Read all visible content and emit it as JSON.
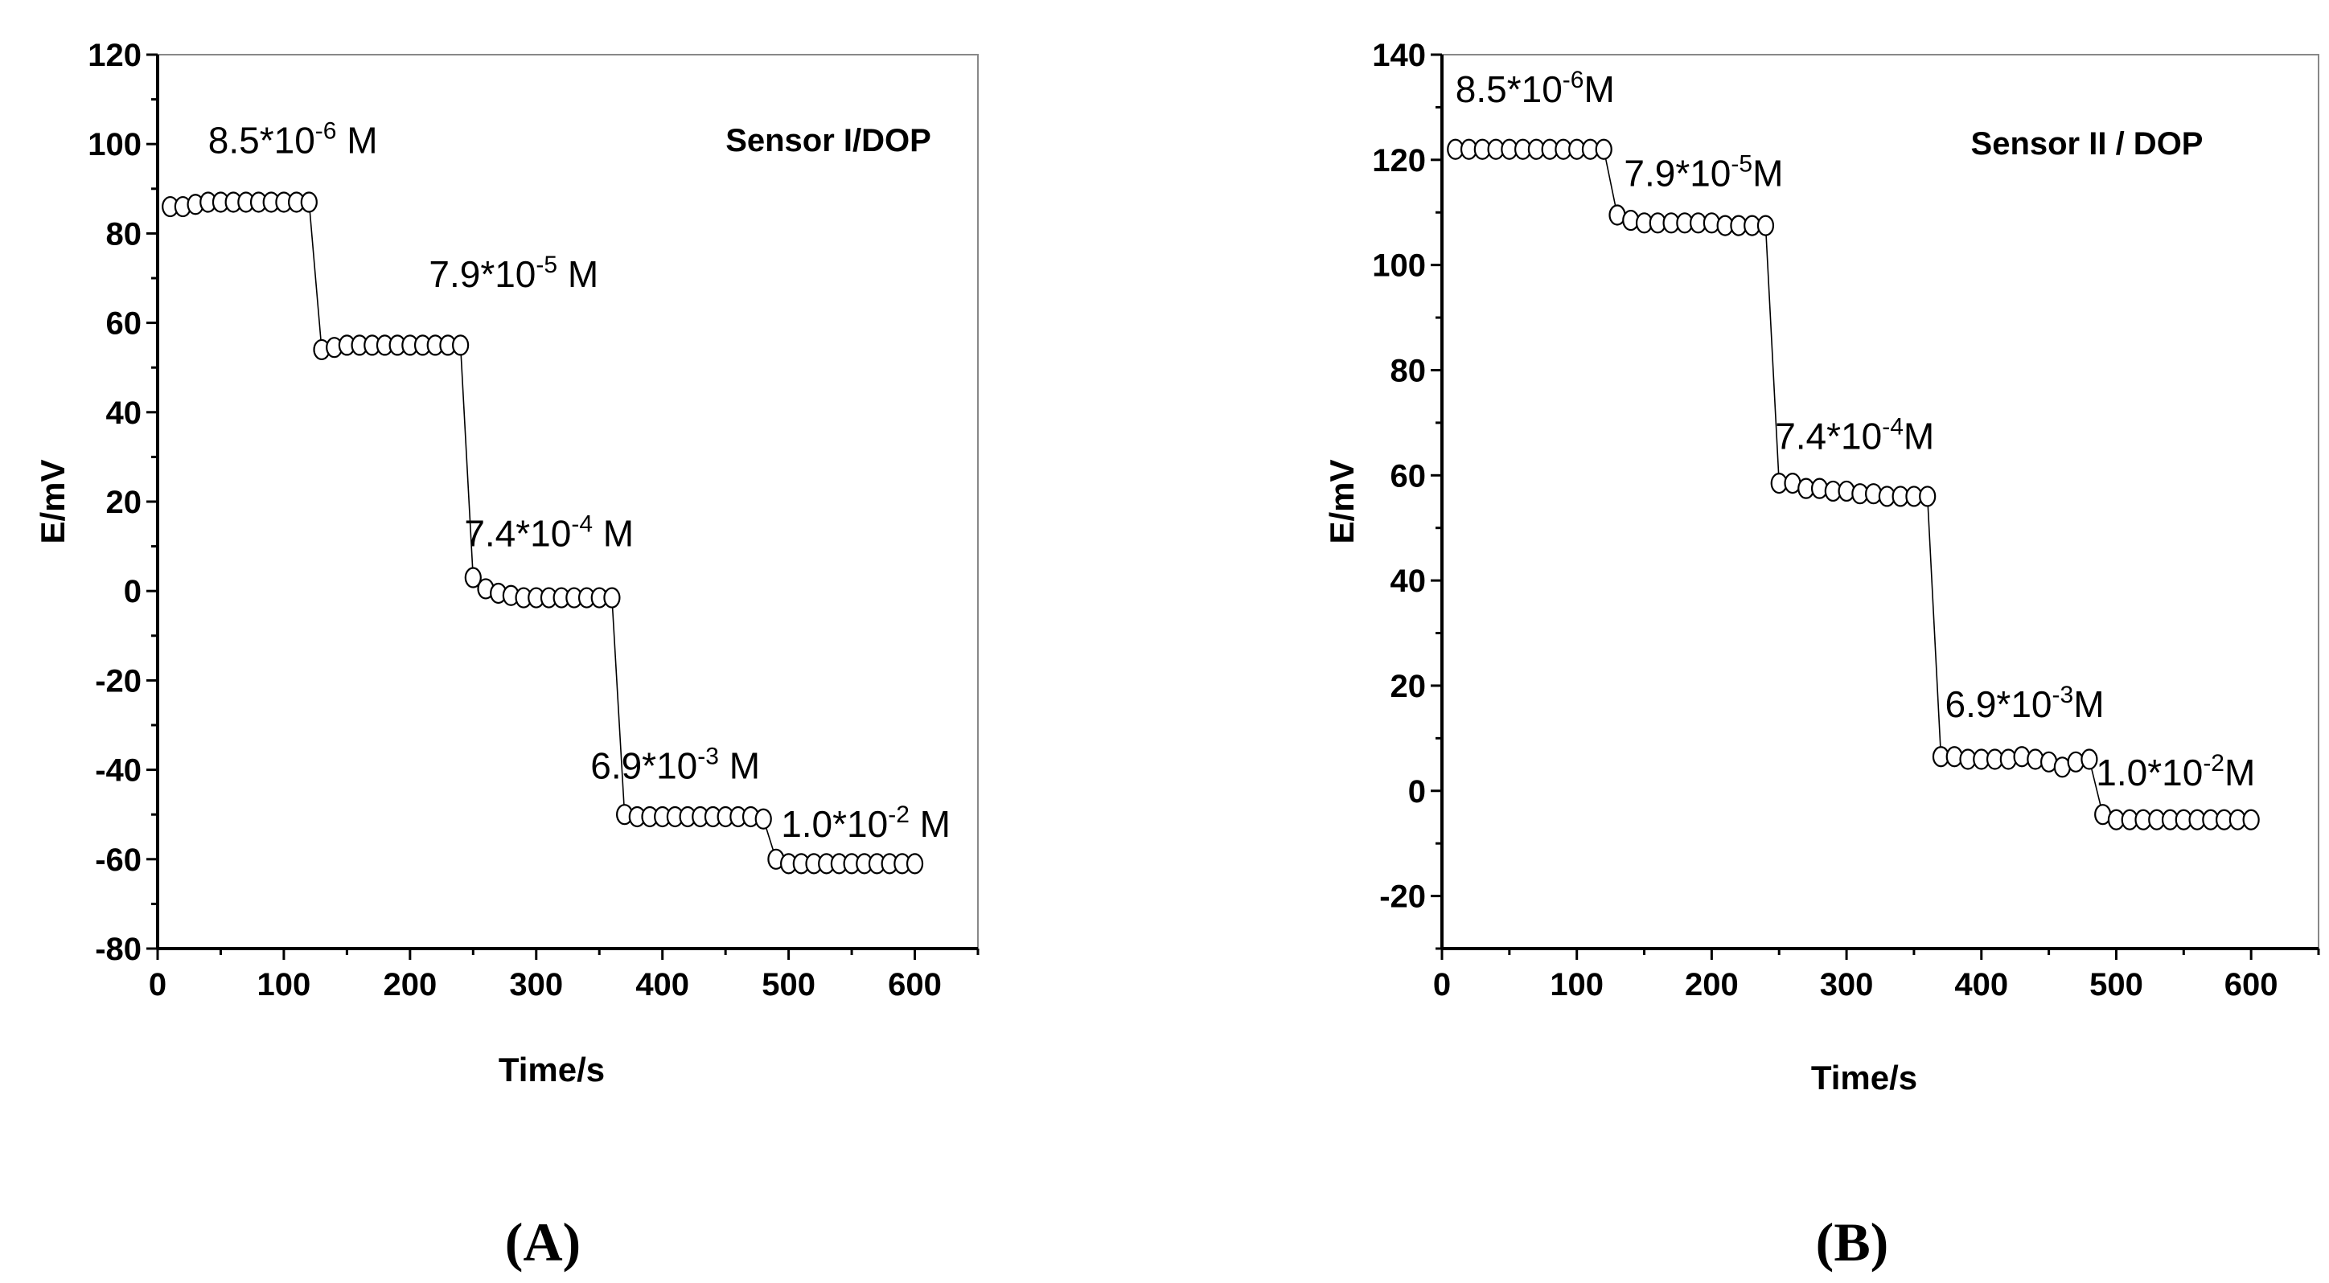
{
  "chart_data": [
    {
      "id": "A",
      "type": "scatter",
      "panel_label": "(A)",
      "title": "Sensor I/DOP",
      "xlabel": "Time/s",
      "ylabel": "E/mV",
      "xlim": [
        0,
        650
      ],
      "ylim": [
        -80,
        120
      ],
      "xticks": [
        0,
        100,
        200,
        300,
        400,
        500,
        600
      ],
      "yticks": [
        -80,
        -60,
        -40,
        -20,
        0,
        20,
        40,
        60,
        80,
        100,
        120
      ],
      "grid": false,
      "segments": [
        {
          "concentration": "8.5*10",
          "exponent": "-6",
          "unit": " M",
          "label_at": [
            40,
            98
          ],
          "x": [
            10,
            20,
            30,
            40,
            50,
            60,
            70,
            80,
            90,
            100,
            110,
            120
          ],
          "y": [
            86,
            86,
            86.5,
            87,
            87,
            87,
            87,
            87,
            87,
            87,
            87,
            87
          ]
        },
        {
          "concentration": "7.9*10",
          "exponent": "-5",
          "unit": " M",
          "label_at": [
            215,
            68
          ],
          "x": [
            130,
            140,
            150,
            160,
            170,
            180,
            190,
            200,
            210,
            220,
            230,
            240
          ],
          "y": [
            54,
            54.5,
            55,
            55,
            55,
            55,
            55,
            55,
            55,
            55,
            55,
            55
          ]
        },
        {
          "concentration": "7.4*10",
          "exponent": "-4",
          "unit": " M",
          "label_at": [
            243,
            10
          ],
          "x": [
            250,
            260,
            270,
            280,
            290,
            300,
            310,
            320,
            330,
            340,
            350,
            360
          ],
          "y": [
            3,
            0.5,
            -0.5,
            -1,
            -1.5,
            -1.5,
            -1.5,
            -1.5,
            -1.5,
            -1.5,
            -1.5,
            -1.5
          ]
        },
        {
          "concentration": "6.9*10",
          "exponent": "-3",
          "unit": " M",
          "label_at": [
            343,
            -42
          ],
          "x": [
            370,
            380,
            390,
            400,
            410,
            420,
            430,
            440,
            450,
            460,
            470,
            480
          ],
          "y": [
            -50,
            -50.5,
            -50.5,
            -50.5,
            -50.5,
            -50.5,
            -50.5,
            -50.5,
            -50.5,
            -50.5,
            -50.5,
            -51
          ]
        },
        {
          "concentration": "1.0*10",
          "exponent": "-2",
          "unit": " M",
          "label_at": [
            494,
            -55
          ],
          "x": [
            490,
            500,
            510,
            520,
            530,
            540,
            550,
            560,
            570,
            580,
            590,
            600
          ],
          "y": [
            -60,
            -61,
            -61,
            -61,
            -61,
            -61,
            -61,
            -61,
            -61,
            -61,
            -61,
            -61
          ]
        }
      ]
    },
    {
      "id": "B",
      "type": "scatter",
      "panel_label": "(B)",
      "title": "Sensor II / DOP",
      "xlabel": "Time/s",
      "ylabel": "E/mV",
      "xlim": [
        0,
        650
      ],
      "ylim": [
        -30,
        140
      ],
      "xticks": [
        0,
        100,
        200,
        300,
        400,
        500,
        600
      ],
      "yticks": [
        -20,
        0,
        20,
        40,
        60,
        80,
        100,
        120,
        140
      ],
      "grid": false,
      "segments": [
        {
          "concentration": "8.5*10",
          "exponent": "-6",
          "unit": "M",
          "label_at": [
            10,
            131
          ],
          "x": [
            10,
            20,
            30,
            40,
            50,
            60,
            70,
            80,
            90,
            100,
            110,
            120
          ],
          "y": [
            122,
            122,
            122,
            122,
            122,
            122,
            122,
            122,
            122,
            122,
            122,
            122
          ]
        },
        {
          "concentration": "7.9*10",
          "exponent": "-5",
          "unit": "M",
          "label_at": [
            135,
            115
          ],
          "x": [
            130,
            140,
            150,
            160,
            170,
            180,
            190,
            200,
            210,
            220,
            230,
            240
          ],
          "y": [
            109.5,
            108.5,
            108,
            108,
            108,
            108,
            108,
            108,
            107.5,
            107.5,
            107.5,
            107.5
          ]
        },
        {
          "concentration": "7.4*10",
          "exponent": "-4",
          "unit": "M",
          "label_at": [
            247,
            65
          ],
          "x": [
            250,
            260,
            270,
            280,
            290,
            300,
            310,
            320,
            330,
            340,
            350,
            360
          ],
          "y": [
            58.5,
            58.5,
            57.5,
            57.5,
            57,
            57,
            56.5,
            56.5,
            56,
            56,
            56,
            56
          ]
        },
        {
          "concentration": "6.9*10",
          "exponent": "-3",
          "unit": "M",
          "label_at": [
            373,
            14
          ],
          "x": [
            370,
            380,
            390,
            400,
            410,
            420,
            430,
            440,
            450,
            460,
            470,
            480
          ],
          "y": [
            6.5,
            6.5,
            6,
            6,
            6,
            6,
            6.5,
            6,
            5.5,
            4.5,
            5.5,
            6
          ]
        },
        {
          "concentration": "1.0*10",
          "exponent": "-2",
          "unit": "M",
          "label_at": [
            485,
            1
          ],
          "x": [
            490,
            500,
            510,
            520,
            530,
            540,
            550,
            560,
            570,
            580,
            590,
            600
          ],
          "y": [
            -4.5,
            -5.5,
            -5.5,
            -5.5,
            -5.5,
            -5.5,
            -5.5,
            -5.5,
            -5.5,
            -5.5,
            -5.5,
            -5.5
          ]
        }
      ]
    }
  ]
}
